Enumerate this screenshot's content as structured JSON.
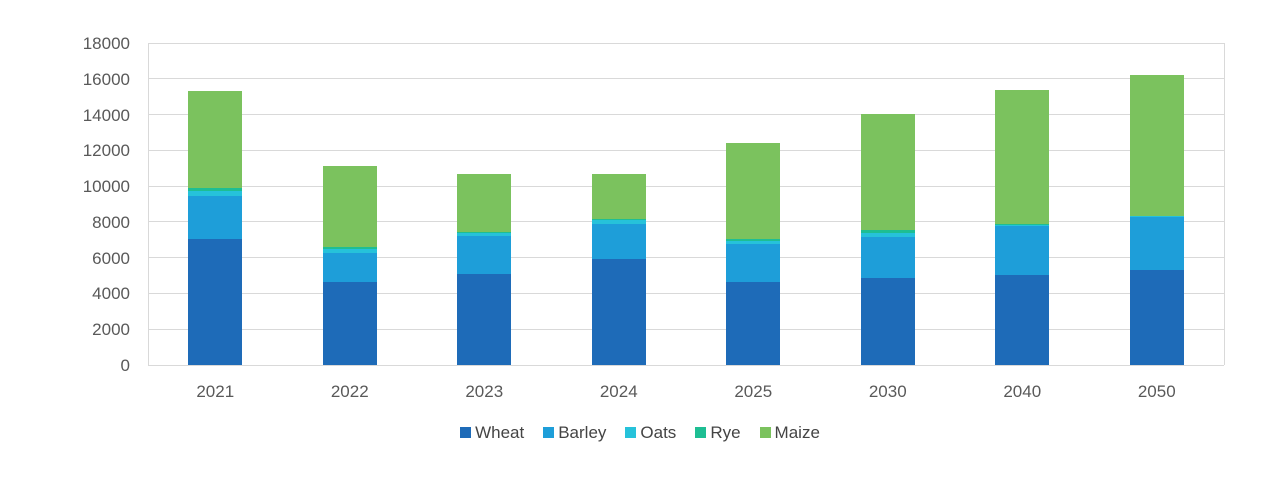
{
  "chart_data": {
    "type": "bar",
    "stacked": true,
    "title": "",
    "xlabel": "",
    "ylabel": "",
    "categories": [
      "2021",
      "2022",
      "2023",
      "2024",
      "2025",
      "2030",
      "2040",
      "2050"
    ],
    "series": [
      {
        "name": "Wheat",
        "color": "#1E6BB8",
        "values": [
          7050,
          4650,
          5100,
          5900,
          4650,
          4850,
          5050,
          5300
        ]
      },
      {
        "name": "Barley",
        "color": "#1E9ED9",
        "values": [
          2400,
          1600,
          2100,
          2000,
          2100,
          2300,
          2700,
          3000
        ]
      },
      {
        "name": "Oats",
        "color": "#26C2DA",
        "values": [
          300,
          250,
          200,
          200,
          200,
          250,
          100,
          50
        ]
      },
      {
        "name": "Rye",
        "color": "#1EBE93",
        "values": [
          150,
          100,
          50,
          50,
          100,
          150,
          50,
          0
        ]
      },
      {
        "name": "Maize",
        "color": "#7BC25E",
        "values": [
          5400,
          4500,
          3200,
          2500,
          5350,
          6500,
          7500,
          7850
        ]
      }
    ],
    "totals": [
      15300,
      11100,
      10650,
      10650,
      12400,
      14050,
      15400,
      16200
    ],
    "ylim": [
      0,
      18000
    ],
    "ytick_step": 2000,
    "ytick_labels": [
      "0",
      "2000",
      "4000",
      "6000",
      "8000",
      "10000",
      "12000",
      "14000",
      "16000",
      "18000"
    ],
    "grid": true,
    "legend_position": "bottom"
  },
  "style": {
    "gridline_color": "#D9D9D9",
    "axis_label_color": "#595959",
    "legend_label_color": "#444444",
    "background": "#FFFFFF"
  }
}
